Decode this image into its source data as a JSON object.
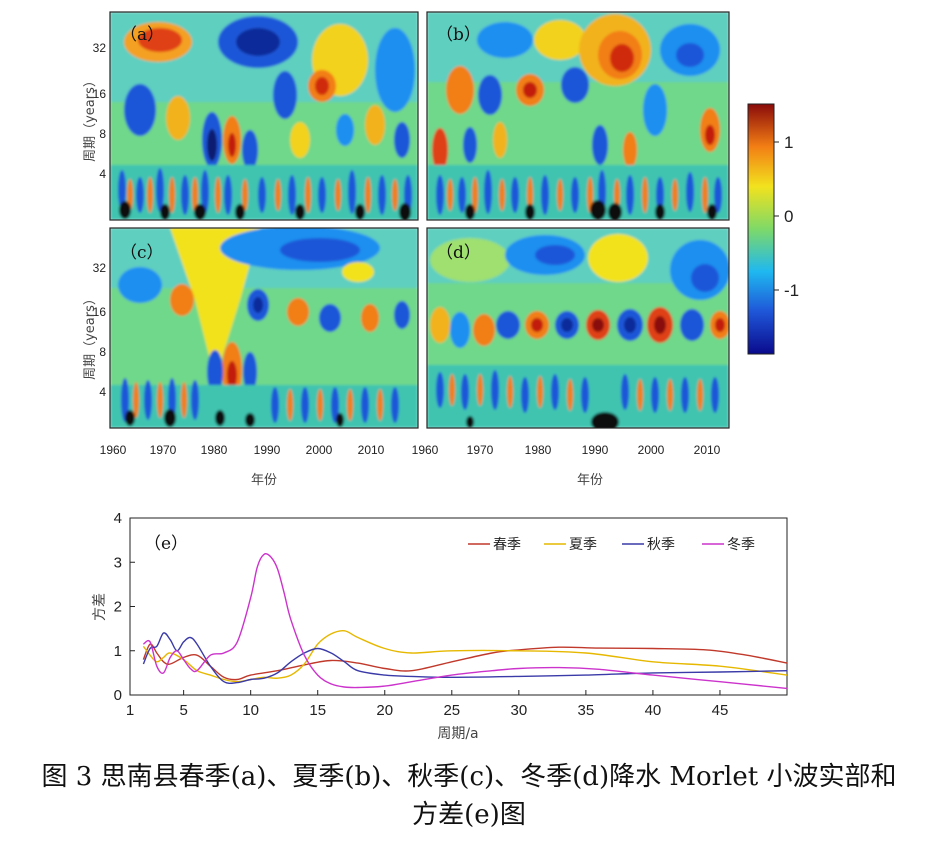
{
  "wavelet": {
    "panels": [
      {
        "label": "（a）"
      },
      {
        "label": "（b）"
      },
      {
        "label": "（c）"
      },
      {
        "label": "（d）"
      }
    ],
    "ylabel": "周期（years）",
    "yticks": [
      "4",
      "8",
      "16",
      "32"
    ],
    "xlabel": "年份",
    "xticks_left": [
      "1960",
      "1970",
      "1980",
      "1990",
      "2000",
      "2010"
    ],
    "xticks_right": [
      "1960",
      "1970",
      "1980",
      "1990",
      "2000",
      "2010"
    ],
    "colorbar": {
      "ticks": [
        "1",
        "0",
        "-1"
      ],
      "range": [
        -1.5,
        1.5
      ]
    }
  },
  "chart_data": {
    "type": "line",
    "panel_label": "（e）",
    "xlabel": "周期/a",
    "ylabel": "方差",
    "xlim": [
      1,
      50
    ],
    "ylim": [
      0,
      4
    ],
    "xticks": [
      1,
      5,
      10,
      15,
      20,
      25,
      30,
      35,
      40,
      45
    ],
    "yticks": [
      0,
      1,
      2,
      3,
      4
    ],
    "legend_position": "top-right",
    "series": [
      {
        "name": "春季",
        "color": "#c0392b",
        "x": [
          2,
          2.5,
          3,
          3.5,
          4,
          5,
          6,
          7,
          8,
          9,
          10,
          12,
          14,
          16,
          18,
          20,
          22,
          25,
          28,
          30,
          33,
          36,
          40,
          44,
          47,
          50
        ],
        "y": [
          0.8,
          1.15,
          0.95,
          0.75,
          0.7,
          0.85,
          0.9,
          0.65,
          0.4,
          0.35,
          0.45,
          0.55,
          0.68,
          0.78,
          0.72,
          0.6,
          0.55,
          0.75,
          0.95,
          1.02,
          1.08,
          1.06,
          1.05,
          1.02,
          0.9,
          0.72
        ]
      },
      {
        "name": "夏季",
        "color": "#e6b800",
        "x": [
          2,
          2.5,
          3,
          3.5,
          4,
          5,
          6,
          7,
          8,
          9,
          10,
          11,
          12,
          13,
          14,
          15,
          16,
          17,
          18,
          20,
          22,
          25,
          30,
          35,
          40,
          45,
          50
        ],
        "y": [
          1.1,
          0.9,
          0.75,
          0.85,
          0.95,
          0.8,
          0.55,
          0.45,
          0.35,
          0.3,
          0.35,
          0.4,
          0.38,
          0.45,
          0.7,
          1.15,
          1.38,
          1.45,
          1.3,
          1.05,
          0.95,
          1.0,
          1.0,
          0.95,
          0.75,
          0.65,
          0.45
        ]
      },
      {
        "name": "秋季",
        "color": "#3a3aa8",
        "x": [
          2,
          2.5,
          3,
          3.5,
          4,
          4.5,
          5,
          5.5,
          6,
          7,
          8,
          9,
          10,
          11,
          12,
          13,
          14,
          15,
          16,
          17,
          18,
          20,
          22,
          25,
          30,
          35,
          40,
          45,
          50
        ],
        "y": [
          0.7,
          1.05,
          1.1,
          1.4,
          1.25,
          1.0,
          1.2,
          1.3,
          1.15,
          0.65,
          0.3,
          0.28,
          0.35,
          0.38,
          0.5,
          0.75,
          0.95,
          1.05,
          0.95,
          0.75,
          0.55,
          0.45,
          0.42,
          0.4,
          0.42,
          0.45,
          0.5,
          0.52,
          0.55
        ]
      },
      {
        "name": "冬季",
        "color": "#cc33cc",
        "x": [
          2,
          2.5,
          3,
          3.5,
          4,
          4.5,
          5,
          5.5,
          6,
          7,
          8,
          9,
          10,
          10.5,
          11,
          11.5,
          12,
          12.5,
          13,
          14,
          15,
          16,
          17,
          18,
          20,
          22,
          25,
          28,
          30,
          33,
          36,
          40,
          45,
          50
        ],
        "y": [
          1.15,
          1.2,
          0.65,
          0.5,
          0.85,
          1.0,
          0.8,
          0.6,
          0.55,
          0.9,
          0.95,
          1.2,
          2.2,
          2.9,
          3.18,
          3.12,
          2.85,
          2.3,
          1.7,
          0.9,
          0.45,
          0.25,
          0.18,
          0.17,
          0.2,
          0.3,
          0.45,
          0.55,
          0.6,
          0.62,
          0.58,
          0.45,
          0.3,
          0.15
        ]
      }
    ]
  },
  "caption": {
    "line1": "图 3  思南县春季(a)、夏季(b)、秋季(c)、冬季(d)降水 Morlet 小波实部和",
    "line2": "方差(e)图"
  }
}
